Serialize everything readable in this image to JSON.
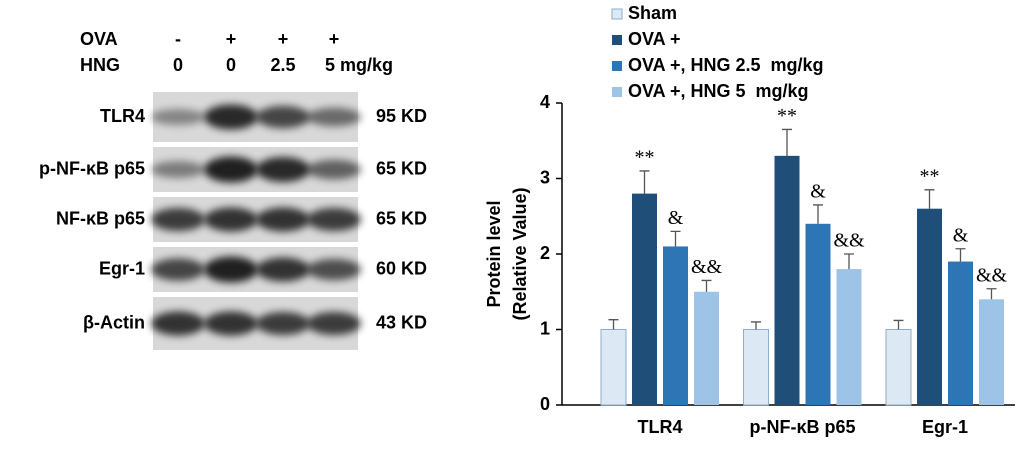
{
  "blot": {
    "header": [
      {
        "label": "OVA",
        "lanes": [
          "-",
          "+",
          "+",
          "+"
        ]
      },
      {
        "label": "HNG",
        "lanes": [
          "0",
          "0",
          "2.5",
          "5 mg/kg"
        ]
      }
    ],
    "rows": [
      {
        "protein": "TLR4",
        "size": "95 KD"
      },
      {
        "protein": "p-NF-κB p65",
        "size": "65 KD"
      },
      {
        "protein": "NF-κB p65",
        "size": "65 KD"
      },
      {
        "protein": "Egr-1",
        "size": "60 KD"
      },
      {
        "protein": "β-Actin",
        "size": "43 KD"
      }
    ]
  },
  "chart_data": {
    "type": "bar",
    "y_label": [
      "Protein level",
      "(Relative Value)"
    ],
    "categories": [
      "TLR4",
      "p-NF-κB p65",
      "Egr-1"
    ],
    "series": [
      {
        "name": "Sham",
        "color": "#dce9f5",
        "values": [
          1,
          1,
          1
        ],
        "errors": [
          0.13,
          0.1,
          0.12
        ]
      },
      {
        "name": "OVA +",
        "color": "#1f4e79",
        "values": [
          2.8,
          3.3,
          2.6
        ],
        "errors": [
          0.3,
          0.35,
          0.25
        ],
        "annotations": [
          "**",
          "**",
          "**"
        ]
      },
      {
        "name": "OVA +, HNG 2.5  mg/kg",
        "color": "#2e75b6",
        "values": [
          2.1,
          2.4,
          1.9
        ],
        "errors": [
          0.2,
          0.25,
          0.17
        ],
        "annotations": [
          "&",
          "&",
          "&"
        ]
      },
      {
        "name": "OVA +, HNG 5  mg/kg",
        "color": "#9dc3e6",
        "values": [
          1.5,
          1.8,
          1.4
        ],
        "errors": [
          0.15,
          0.2,
          0.14
        ],
        "annotations": [
          "&&",
          "&&",
          "&&"
        ]
      }
    ],
    "ylim": [
      0,
      4
    ],
    "yticks": [
      0,
      1,
      2,
      3,
      4
    ]
  }
}
